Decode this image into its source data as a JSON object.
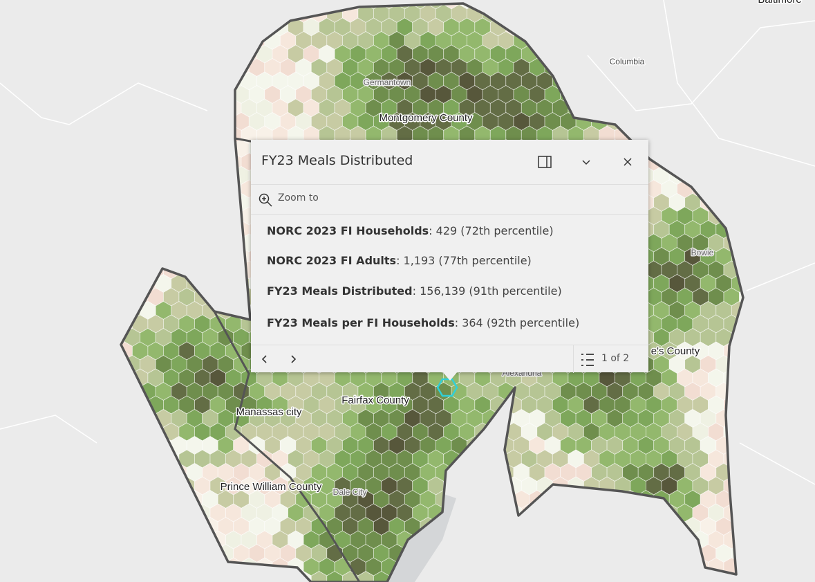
{
  "map": {
    "labels": [
      {
        "text": "Baltimore"
      },
      {
        "text": "Columbia"
      },
      {
        "text": "Germantown"
      },
      {
        "text": "Montgomery County"
      },
      {
        "text": "Bowie"
      },
      {
        "text": "e's County"
      },
      {
        "text": "Alexandria"
      },
      {
        "text": "Fairfax County"
      },
      {
        "text": "Manassas city"
      },
      {
        "text": "Prince William County"
      },
      {
        "text": "Dale City"
      }
    ]
  },
  "popup": {
    "title": "FY23 Meals Distributed",
    "zoom": "Zoom to",
    "fields": [
      {
        "label": "NORC 2023 FI Households",
        "value": ": 429 (72th percentile)"
      },
      {
        "label": "NORC 2023 FI Adults",
        "value": ": 1,193 (77th percentile)"
      },
      {
        "label": "FY23 Meals Distributed",
        "value": ": 156,139 (91th percentile)"
      },
      {
        "label": "FY23 Meals per FI Households",
        "value": ": 364 (92th percentile)"
      }
    ],
    "pager": "1 of 2"
  }
}
